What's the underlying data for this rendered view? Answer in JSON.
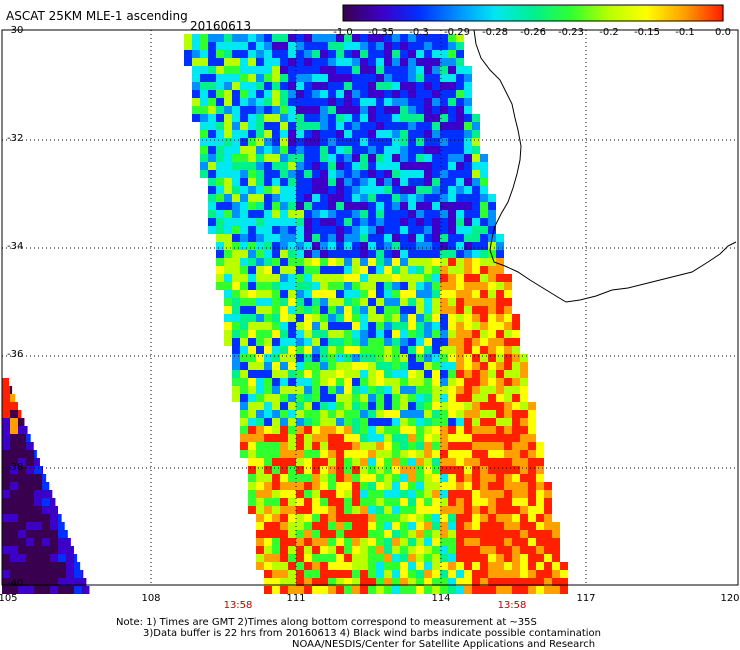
{
  "header": {
    "title": "ASCAT 25KM MLE-1 ascending",
    "date": "20160613"
  },
  "colorbar": {
    "labels": [
      "-1.0",
      "-0.35",
      "-0.3",
      "-0.29",
      "-0.28",
      "-0.26",
      "-0.23",
      "-0.2",
      "-0.15",
      "-0.1",
      "0.0"
    ],
    "colors": [
      "#3a0050",
      "#3c00c8",
      "#0030ff",
      "#0090ff",
      "#00e8f0",
      "#00f090",
      "#30ff30",
      "#b8ff00",
      "#ffff00",
      "#ffa000",
      "#ff2000"
    ]
  },
  "axes": {
    "lon_labels": [
      "105",
      "108",
      "111",
      "114",
      "117",
      "120"
    ],
    "lat_labels": [
      "-30",
      "-32",
      "-34",
      "-36",
      "-38",
      "-40"
    ],
    "lon_range": [
      105,
      120
    ],
    "lat_range": [
      -40,
      -30
    ]
  },
  "swath_times": [
    "13:58",
    "13:58"
  ],
  "notes": {
    "line1": "Note: 1) Times are GMT 2)Times along bottom correspond to measurement at ~35S",
    "line2": "3)Data buffer is 22 hrs from 20160613 4) Black wind barbs indicate possible contamination",
    "line3": "NOAA/NESDIS/Center for Satellite Applications and Research"
  }
}
